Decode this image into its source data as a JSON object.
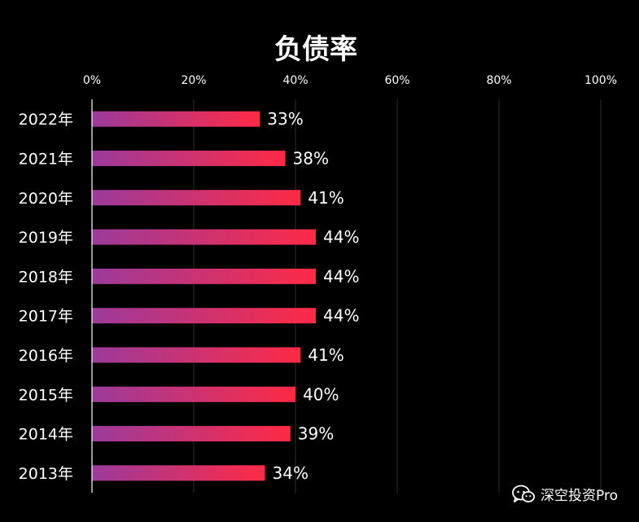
{
  "chart_data": {
    "type": "bar",
    "orientation": "horizontal",
    "title": "负债率",
    "categories": [
      "2022年",
      "2021年",
      "2020年",
      "2019年",
      "2018年",
      "2017年",
      "2016年",
      "2015年",
      "2014年",
      "2013年"
    ],
    "values": [
      33,
      38,
      41,
      44,
      44,
      44,
      41,
      40,
      39,
      34
    ],
    "value_labels": [
      "33%",
      "38%",
      "41%",
      "44%",
      "44%",
      "44%",
      "41%",
      "40%",
      "39%",
      "34%"
    ],
    "xlim": [
      0,
      100
    ],
    "xticks": [
      0,
      20,
      40,
      60,
      80,
      100
    ],
    "xtick_labels": [
      "0%",
      "20%",
      "40%",
      "60%",
      "80%",
      "100%"
    ],
    "xlabel": "",
    "ylabel": "",
    "xaxis_position": "top",
    "grid": true,
    "legend": "none",
    "colors": {
      "background": "#000000",
      "bar_start": "#9b3a9b",
      "bar_end": "#ff2a45",
      "grid": "#2e2e2e",
      "axis": "#ffffff",
      "text": "#ffffff"
    }
  },
  "watermark": {
    "icon": "wechat-icon",
    "text": "深空投资Pro"
  }
}
